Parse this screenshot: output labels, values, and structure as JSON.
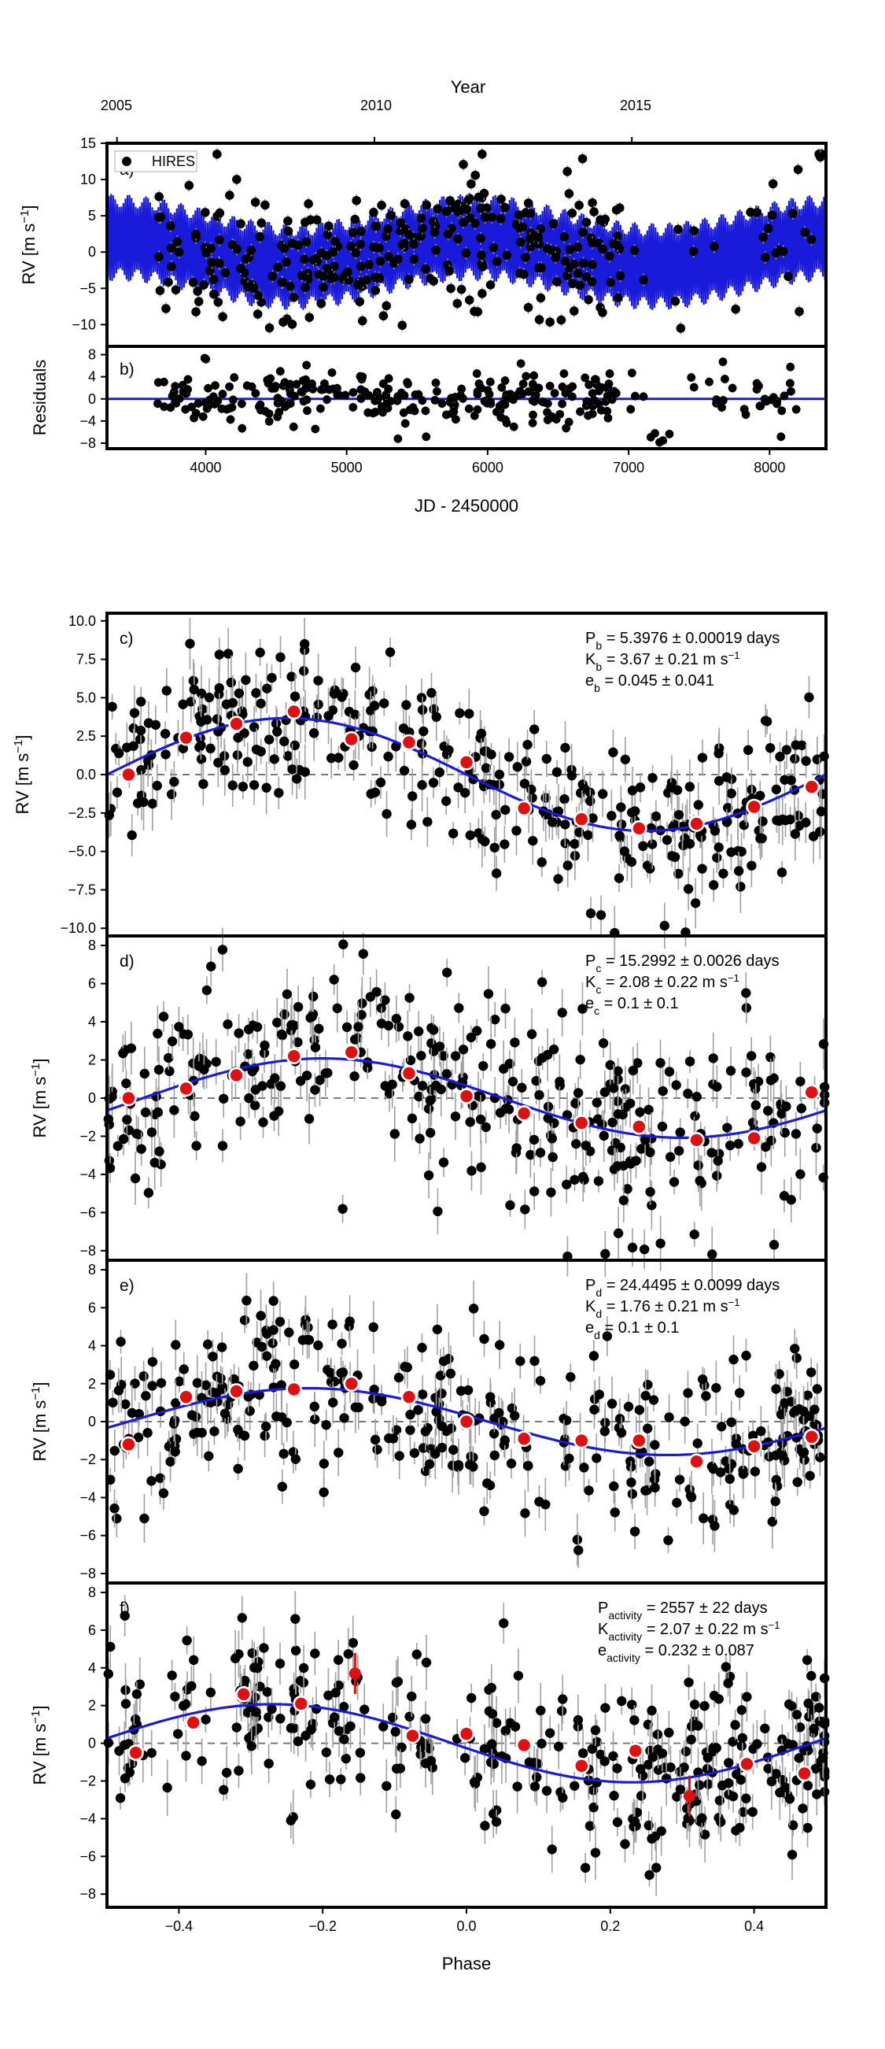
{
  "chart_data": [
    {
      "id": "a",
      "type": "scatter",
      "panel_label": "a)",
      "legend": "HIRES",
      "top_axis": {
        "label": "Year",
        "ticks": [
          "2005",
          "2010",
          "2015"
        ],
        "tick_values": [
          3371,
          5197,
          7023
        ]
      },
      "ylabel": "RV [m s⁻¹]",
      "xlim": [
        3300,
        8400
      ],
      "ylim": [
        -13,
        15
      ],
      "yticks": [
        -10,
        -5,
        0,
        5,
        10,
        15
      ],
      "model": {
        "type": "oscillating band",
        "color": "#1a1adb",
        "center_amplitude": 2.0,
        "half_width": 6.0,
        "lower_bound": -10,
        "upper_bound": 10
      },
      "series": {
        "marker_color": "#000000",
        "error_color": "#9e9e9e",
        "count": 320,
        "y_range": [
          -11,
          14
        ]
      }
    },
    {
      "id": "b",
      "type": "scatter",
      "panel_label": "b)",
      "ylabel": "Residuals",
      "xlabel": "JD - 2450000",
      "xlim": [
        3300,
        8400
      ],
      "ylim": [
        -9,
        9.5
      ],
      "xticks": [
        4000,
        5000,
        6000,
        7000,
        8000
      ],
      "yticks": [
        -8,
        -4,
        0,
        4,
        8
      ],
      "model_line": {
        "value": 0,
        "color": "#1a1adb"
      },
      "series": {
        "marker_color": "#000000",
        "count": 310,
        "y_range": [
          -8,
          8
        ]
      }
    },
    {
      "id": "c",
      "type": "scatter",
      "panel_label": "c)",
      "ylabel": "RV [m s⁻¹]",
      "xlim": [
        -0.5,
        0.5
      ],
      "ylim": [
        -10.5,
        10.5
      ],
      "yticks": [
        -10,
        -7.5,
        -5,
        -2.5,
        0,
        2.5,
        5,
        7.5,
        10
      ],
      "ytick_labels": [
        "−10.0",
        "−7.5",
        "−5.0",
        "−2.5",
        "0.0",
        "2.5",
        "5.0",
        "7.5",
        "10.0"
      ],
      "annotation": {
        "lines": [
          "P_b = 5.3976 ± 0.00019 days",
          "K_b = 3.67 ± 0.21 m s⁻¹",
          "e_b = 0.045 ± 0.041"
        ]
      },
      "model": {
        "K": 3.67,
        "phase_peak": -0.25
      },
      "binned": {
        "x": [
          -0.47,
          -0.39,
          -0.32,
          -0.24,
          -0.16,
          -0.08,
          0.0,
          0.08,
          0.16,
          0.24,
          0.32,
          0.4,
          0.48
        ],
        "y": [
          0.0,
          2.4,
          3.3,
          4.1,
          2.3,
          2.1,
          0.8,
          -2.2,
          -2.9,
          -3.5,
          -3.2,
          -2.1,
          -0.8
        ]
      }
    },
    {
      "id": "d",
      "type": "scatter",
      "panel_label": "d)",
      "ylabel": "RV [m s⁻¹]",
      "xlim": [
        -0.5,
        0.5
      ],
      "ylim": [
        -8.5,
        8.5
      ],
      "yticks": [
        -8,
        -6,
        -4,
        -2,
        0,
        2,
        4,
        6,
        8
      ],
      "annotation": {
        "lines": [
          "P_c = 15.2992 ± 0.0026 days",
          "K_c = 2.08 ± 0.22 m s⁻¹",
          "e_c = 0.1 ± 0.1"
        ]
      },
      "model": {
        "K": 2.08,
        "phase_peak": -0.2
      },
      "binned": {
        "x": [
          -0.47,
          -0.39,
          -0.32,
          -0.24,
          -0.16,
          -0.08,
          0.0,
          0.08,
          0.16,
          0.24,
          0.32,
          0.4,
          0.48
        ],
        "y": [
          0.0,
          0.5,
          1.2,
          2.2,
          2.4,
          1.3,
          0.1,
          -0.8,
          -1.3,
          -1.5,
          -2.2,
          -2.1,
          0.3
        ]
      }
    },
    {
      "id": "e",
      "type": "scatter",
      "panel_label": "e)",
      "ylabel": "RV [m s⁻¹]",
      "xlim": [
        -0.5,
        0.5
      ],
      "ylim": [
        -8.5,
        8.5
      ],
      "yticks": [
        -8,
        -6,
        -4,
        -2,
        0,
        2,
        4,
        6,
        8
      ],
      "annotation": {
        "lines": [
          "P_d = 24.4495 ± 0.0099 days",
          "K_d = 1.76 ± 0.21 m s⁻¹",
          "e_d = 0.1 ± 0.1"
        ]
      },
      "model": {
        "K": 1.76,
        "phase_peak": -0.22
      },
      "binned": {
        "x": [
          -0.47,
          -0.39,
          -0.32,
          -0.24,
          -0.16,
          -0.08,
          0.0,
          0.08,
          0.16,
          0.24,
          0.32,
          0.4,
          0.48
        ],
        "y": [
          -1.2,
          1.3,
          1.6,
          1.7,
          2.0,
          1.3,
          0.0,
          -0.9,
          -1.0,
          -1.0,
          -2.1,
          -1.3,
          -0.8
        ]
      }
    },
    {
      "id": "f",
      "type": "scatter",
      "panel_label": "f)",
      "ylabel": "RV [m s⁻¹]",
      "xlabel": "Phase",
      "xlim": [
        -0.5,
        0.5
      ],
      "ylim": [
        -8.7,
        8.5
      ],
      "xticks": [
        -0.4,
        -0.2,
        0.0,
        0.2,
        0.4
      ],
      "xtick_labels": [
        "−0.4",
        "−0.2",
        "0.0",
        "0.2",
        "0.4"
      ],
      "yticks": [
        -8,
        -6,
        -4,
        -2,
        0,
        2,
        4,
        6,
        8
      ],
      "annotation": {
        "lines": [
          "P_activity = 2557 ± 22 days",
          "K_activity = 2.07 ± 0.22 m s⁻¹",
          "e_activity = 0.232 ± 0.087"
        ]
      },
      "model": {
        "K": 2.07,
        "phase_peak": -0.27
      },
      "binned": {
        "x": [
          -0.46,
          -0.38,
          -0.31,
          -0.23,
          -0.155,
          -0.075,
          0.0,
          0.08,
          0.16,
          0.235,
          0.31,
          0.39,
          0.47
        ],
        "y": [
          -0.5,
          1.1,
          2.6,
          2.1,
          3.7,
          0.4,
          0.5,
          -0.1,
          -1.2,
          -0.4,
          -2.8,
          -1.1,
          -1.6
        ]
      }
    }
  ],
  "style": {
    "data_color": "#000000",
    "binned_color": "#e01010",
    "error_color": "#a0a0a0",
    "model_color": "#1a1adb",
    "zero_line_color": "#777777"
  }
}
